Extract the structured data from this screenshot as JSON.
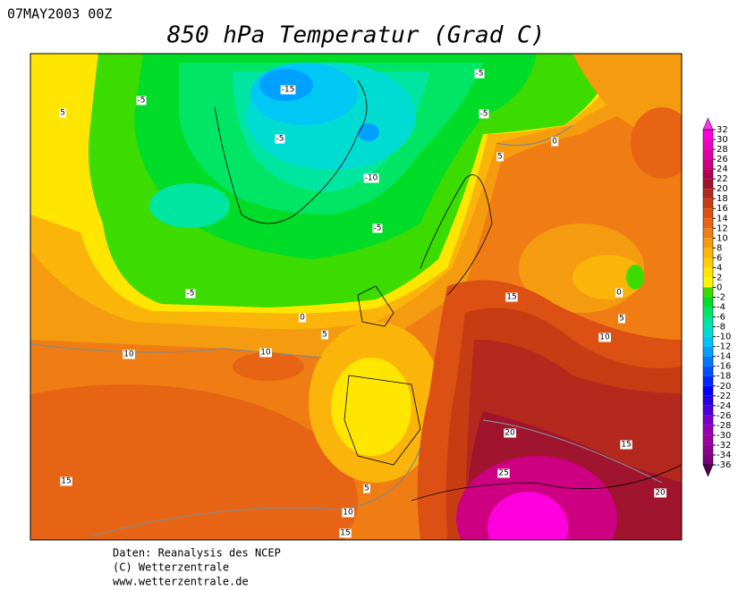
{
  "header": {
    "date": "07MAY2003 00Z",
    "title": "850 hPa Temperatur (Grad C)"
  },
  "colorbar": {
    "levels": [
      32,
      30,
      28,
      26,
      24,
      22,
      20,
      18,
      16,
      14,
      12,
      10,
      8,
      6,
      4,
      2,
      0,
      -2,
      -4,
      -6,
      -8,
      -10,
      -12,
      -14,
      -16,
      -18,
      -20,
      -22,
      -24,
      -26,
      -28,
      -30,
      -32,
      -34,
      -36
    ],
    "colors": [
      "#ff33ee",
      "#ff00dd",
      "#f000c0",
      "#e000a0",
      "#cc0080",
      "#b40050",
      "#a0142d",
      "#b4281e",
      "#c83c14",
      "#dc5014",
      "#e66414",
      "#f07d14",
      "#f59b0f",
      "#fab40a",
      "#ffcd05",
      "#ffe600",
      "#fff500",
      "#3cdc00",
      "#00dc28",
      "#00e664",
      "#00e6a0",
      "#00dcd2",
      "#00c8f5",
      "#00a0ff",
      "#0078ff",
      "#0050ff",
      "#0028ff",
      "#0000ff",
      "#2800e6",
      "#5000dc",
      "#7800c8",
      "#9600b4",
      "#a000a0",
      "#8c008c",
      "#780078",
      "#500050"
    ]
  },
  "map": {
    "contour_labels": [
      5,
      -5,
      -15,
      -5,
      -10,
      -5,
      -5,
      0,
      5,
      10,
      10,
      15,
      -5,
      -5,
      0,
      5,
      0,
      5,
      10,
      20,
      15,
      25,
      20,
      15,
      5,
      10,
      15
    ]
  },
  "footer": {
    "lines": [
      "Daten: Reanalysis des NCEP",
      "(C) Wetterzentrale",
      "www.wetterzentrale.de"
    ]
  }
}
